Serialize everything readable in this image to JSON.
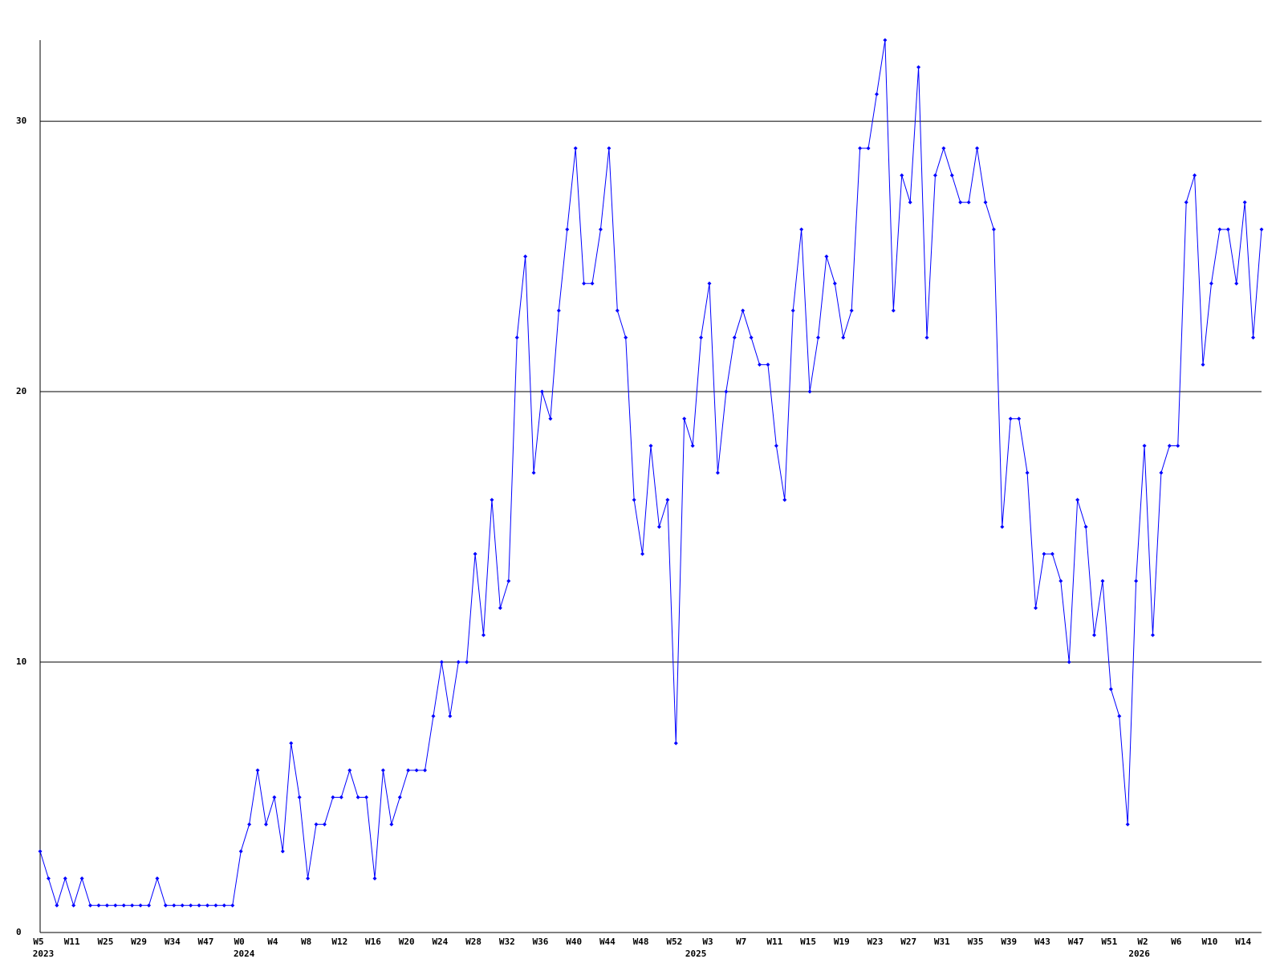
{
  "chart_data": {
    "type": "line",
    "color": "#0000ff",
    "grid": true,
    "ylim": [
      0,
      33
    ],
    "yticks": [
      0,
      10,
      20,
      30
    ],
    "categories": [
      "W5",
      null,
      null,
      null,
      "W11",
      null,
      null,
      null,
      "W25",
      null,
      null,
      null,
      "W29",
      null,
      null,
      null,
      "W34",
      null,
      null,
      null,
      "W47",
      null,
      null,
      null,
      "W0",
      null,
      null,
      null,
      "W4",
      null,
      null,
      null,
      "W8",
      null,
      null,
      null,
      "W12",
      null,
      null,
      null,
      "W16",
      null,
      null,
      null,
      "W20",
      null,
      null,
      null,
      "W24",
      null,
      null,
      null,
      "W28",
      null,
      null,
      null,
      "W32",
      null,
      null,
      null,
      "W36",
      null,
      null,
      null,
      "W40",
      null,
      null,
      null,
      "W44",
      null,
      null,
      null,
      "W48",
      null,
      null,
      null,
      "W52",
      null,
      null,
      null,
      "W3",
      null,
      null,
      null,
      "W7",
      null,
      null,
      null,
      "W11",
      null,
      null,
      null,
      "W15",
      null,
      null,
      null,
      "W19",
      null,
      null,
      null,
      "W23",
      null,
      null,
      null,
      "W27",
      null,
      null,
      null,
      "W31",
      null,
      null,
      null,
      "W35",
      null,
      null,
      null,
      "W39",
      null,
      null,
      null,
      "W43",
      null,
      null,
      null,
      "W47",
      null,
      null,
      null,
      "W51",
      null,
      null,
      null,
      "W2",
      null,
      null,
      null,
      "W6",
      null,
      null,
      null,
      "W10",
      null,
      null,
      null,
      "W14",
      null,
      null
    ],
    "year_categories": [
      "2023",
      null,
      null,
      null,
      null,
      null,
      null,
      null,
      null,
      null,
      null,
      null,
      null,
      null,
      null,
      null,
      null,
      null,
      null,
      null,
      null,
      null,
      null,
      null,
      "2024",
      null,
      null,
      null,
      null,
      null,
      null,
      null,
      null,
      null,
      null,
      null,
      null,
      null,
      null,
      null,
      null,
      null,
      null,
      null,
      null,
      null,
      null,
      null,
      null,
      null,
      null,
      null,
      null,
      null,
      null,
      null,
      null,
      null,
      null,
      null,
      null,
      null,
      null,
      null,
      null,
      null,
      null,
      null,
      null,
      null,
      null,
      null,
      null,
      null,
      null,
      null,
      null,
      null,
      "2025",
      null,
      null,
      null,
      null,
      null,
      null,
      null,
      null,
      null,
      null,
      null,
      null,
      null,
      null,
      null,
      null,
      null,
      null,
      null,
      null,
      null,
      null,
      null,
      null,
      null,
      null,
      null,
      null,
      null,
      null,
      null,
      null,
      null,
      null,
      null,
      null,
      null,
      null,
      null,
      null,
      null,
      null,
      null,
      null,
      null,
      null,
      null,
      null,
      null,
      null,
      null,
      null,
      "2026",
      null,
      null,
      null,
      null,
      null,
      null,
      null,
      null,
      null,
      null,
      null,
      null,
      null,
      null,
      null
    ],
    "values": [
      3,
      2,
      1,
      2,
      1,
      2,
      1,
      1,
      1,
      1,
      1,
      1,
      1,
      1,
      2,
      1,
      1,
      1,
      1,
      1,
      1,
      1,
      1,
      1,
      3,
      4,
      6,
      4,
      5,
      3,
      7,
      5,
      2,
      4,
      4,
      5,
      5,
      6,
      5,
      5,
      2,
      6,
      4,
      5,
      6,
      6,
      6,
      8,
      10,
      8,
      10,
      10,
      14,
      11,
      16,
      12,
      13,
      22,
      25,
      17,
      20,
      19,
      23,
      26,
      29,
      24,
      24,
      26,
      29,
      23,
      22,
      16,
      14,
      18,
      15,
      16,
      7,
      19,
      18,
      22,
      24,
      17,
      20,
      22,
      23,
      22,
      21,
      21,
      18,
      16,
      23,
      26,
      20,
      22,
      25,
      24,
      22,
      23,
      29,
      29,
      31,
      33,
      23,
      28,
      27,
      32,
      22,
      28,
      29,
      28,
      27,
      27,
      29,
      27,
      26,
      15,
      19,
      19,
      17,
      12,
      14,
      14,
      13,
      10,
      16,
      15,
      11,
      13,
      9,
      8,
      4,
      13,
      18,
      11,
      17,
      18,
      18,
      27,
      28,
      21,
      24,
      26,
      26,
      24,
      27,
      22,
      26
    ]
  }
}
